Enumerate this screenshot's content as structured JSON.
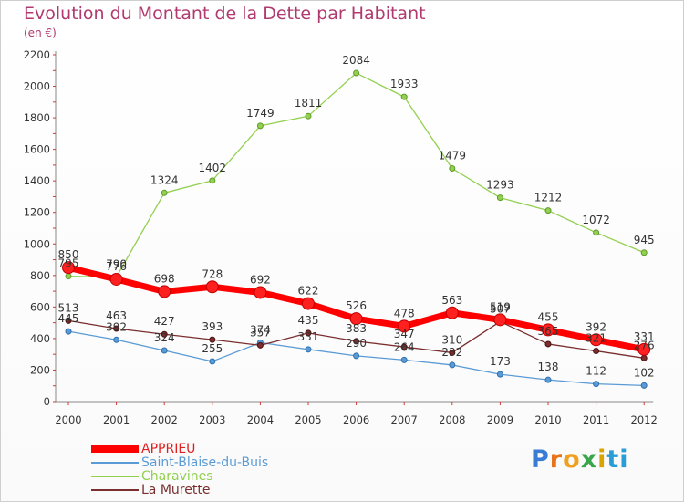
{
  "header": {
    "title": "Evolution du Montant de la Dette par Habitant",
    "subtitle": "(en €)"
  },
  "logo": {
    "letters": [
      "P",
      "r",
      "o",
      "x",
      "i",
      "ti"
    ]
  },
  "colors": {
    "title": "#b03a6f",
    "APPRIEU": "#ff0000",
    "Saint-Blaise-du-Buis": "#5b9bd5",
    "Charavines": "#92d050",
    "La Murette": "#7a2e2e"
  },
  "chart_data": {
    "type": "line",
    "title": "Evolution du Montant de la Dette par Habitant",
    "subtitle": "(en €)",
    "x": [
      "2000",
      "2001",
      "2002",
      "2003",
      "2004",
      "2005",
      "2006",
      "2007",
      "2008",
      "2009",
      "2010",
      "2011",
      "2012"
    ],
    "ylim": [
      0,
      2200
    ],
    "yticks": [
      "0",
      "200",
      "400",
      "600",
      "800",
      "1000",
      "1200",
      "1400",
      "1600",
      "1800",
      "2000",
      "2200"
    ],
    "grid": false,
    "legend_position": "bottom-left",
    "series": [
      {
        "name": "APPRIEU",
        "values": [
          850,
          776,
          698,
          728,
          692,
          622,
          526,
          478,
          563,
          519,
          455,
          392,
          331
        ],
        "labels": [
          "850",
          "776",
          "698",
          "728",
          "692",
          "622",
          "526",
          "478",
          "563",
          "519",
          "455",
          "392",
          "331"
        ]
      },
      {
        "name": "Saint-Blaise-du-Buis",
        "values": [
          445,
          392,
          324,
          255,
          374,
          331,
          290,
          264,
          232,
          173,
          138,
          112,
          102
        ],
        "labels": [
          "445",
          "392",
          "324",
          "255",
          "374",
          "331",
          "290",
          "264",
          "232",
          "173",
          "138",
          "112",
          "102"
        ]
      },
      {
        "name": "Charavines",
        "values": [
          795,
          790,
          1324,
          1402,
          1749,
          1811,
          2084,
          1933,
          1479,
          1293,
          1212,
          1072,
          945
        ],
        "labels": [
          "795",
          "790",
          "1324",
          "1402",
          "1749",
          "1811",
          "2084",
          "1933",
          "1479",
          "1293",
          "1212",
          "1072",
          "945"
        ]
      },
      {
        "name": "La Murette",
        "values": [
          513,
          463,
          427,
          393,
          357,
          435,
          383,
          347,
          310,
          507,
          365,
          321,
          276
        ],
        "labels": [
          "513",
          "463",
          "427",
          "393",
          "357",
          "435",
          "383",
          "347",
          "310",
          "507",
          "365",
          "321",
          "276"
        ]
      }
    ]
  }
}
